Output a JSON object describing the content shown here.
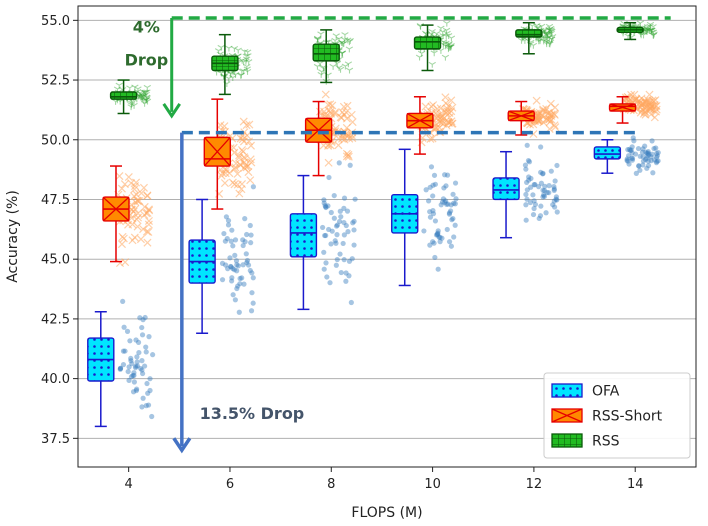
{
  "chart_data": {
    "type": "box",
    "xlabel": "FLOPS (M)",
    "ylabel": "Accuracy (%)",
    "xlim": [
      3,
      15.2
    ],
    "ylim": [
      36.3,
      55.6
    ],
    "x_ticks": [
      4,
      6,
      8,
      10,
      12,
      14
    ],
    "y_ticks": [
      37.5,
      40.0,
      42.5,
      45.0,
      47.5,
      50.0,
      52.5,
      55.0
    ],
    "grid": "horizontal",
    "legend_position": "bottom-right",
    "series": [
      {
        "name": "OFA",
        "color": "#00e5ff",
        "edge_color": "#1a1acc",
        "point_color": "#3a7fbf",
        "pattern": "dots",
        "boxes": [
          {
            "x": 4,
            "min": 38.0,
            "q1": 39.9,
            "median": 40.8,
            "q3": 41.7,
            "max": 42.8
          },
          {
            "x": 6,
            "min": 41.9,
            "q1": 44.0,
            "median": 44.9,
            "q3": 45.8,
            "max": 47.5
          },
          {
            "x": 8,
            "min": 42.9,
            "q1": 45.1,
            "median": 46.1,
            "q3": 46.9,
            "max": 48.5
          },
          {
            "x": 10,
            "min": 43.9,
            "q1": 46.1,
            "median": 46.9,
            "q3": 47.7,
            "max": 49.6
          },
          {
            "x": 12,
            "min": 45.9,
            "q1": 47.5,
            "median": 47.9,
            "q3": 48.4,
            "max": 49.5
          },
          {
            "x": 14,
            "min": 48.6,
            "q1": 49.2,
            "median": 49.4,
            "q3": 49.7,
            "max": 50.0
          }
        ]
      },
      {
        "name": "RSS-Short",
        "color": "#ff8a00",
        "edge_color": "#e60000",
        "point_color": "#ffa860",
        "pattern": "cross",
        "boxes": [
          {
            "x": 4,
            "min": 44.9,
            "q1": 46.6,
            "median": 47.1,
            "q3": 47.6,
            "max": 48.9
          },
          {
            "x": 6,
            "min": 47.1,
            "q1": 48.9,
            "median": 49.2,
            "q3": 50.1,
            "max": 51.7
          },
          {
            "x": 8,
            "min": 48.5,
            "q1": 49.9,
            "median": 50.4,
            "q3": 50.9,
            "max": 51.6
          },
          {
            "x": 10,
            "min": 49.4,
            "q1": 50.5,
            "median": 50.8,
            "q3": 51.1,
            "max": 51.8
          },
          {
            "x": 12,
            "min": 50.2,
            "q1": 50.8,
            "median": 51.0,
            "q3": 51.2,
            "max": 51.6
          },
          {
            "x": 14,
            "min": 50.7,
            "q1": 51.2,
            "median": 51.4,
            "q3": 51.5,
            "max": 51.8
          }
        ]
      },
      {
        "name": "RSS",
        "color": "#22bb22",
        "edge_color": "#0a5a0a",
        "point_color": "#3aa83a",
        "pattern": "grid",
        "boxes": [
          {
            "x": 4,
            "min": 51.1,
            "q1": 51.7,
            "median": 51.8,
            "q3": 52.0,
            "max": 52.5
          },
          {
            "x": 6,
            "min": 51.9,
            "q1": 52.9,
            "median": 53.2,
            "q3": 53.5,
            "max": 54.4
          },
          {
            "x": 8,
            "min": 52.4,
            "q1": 53.3,
            "median": 53.6,
            "q3": 54.0,
            "max": 54.6
          },
          {
            "x": 10,
            "min": 52.9,
            "q1": 53.8,
            "median": 54.1,
            "q3": 54.3,
            "max": 54.8
          },
          {
            "x": 12,
            "min": 53.6,
            "q1": 54.3,
            "median": 54.4,
            "q3": 54.6,
            "max": 54.9
          },
          {
            "x": 14,
            "min": 54.2,
            "q1": 54.5,
            "median": 54.6,
            "q3": 54.7,
            "max": 54.9
          }
        ]
      }
    ],
    "annotations": [
      {
        "text": "4%",
        "text2": "Drop",
        "color": "#2e6b2e",
        "arrow_color": "#22aa44",
        "from_y": 55.0,
        "to_y": 51.0,
        "line_color": "#22aa44",
        "line_y": 55.1
      },
      {
        "text": "13.5% Drop",
        "color": "#44546a",
        "arrow_color": "#4472c4",
        "from_y": 50.3,
        "to_y": 37.0,
        "line_color": "#2e75b6",
        "line_y": 50.3
      }
    ]
  }
}
